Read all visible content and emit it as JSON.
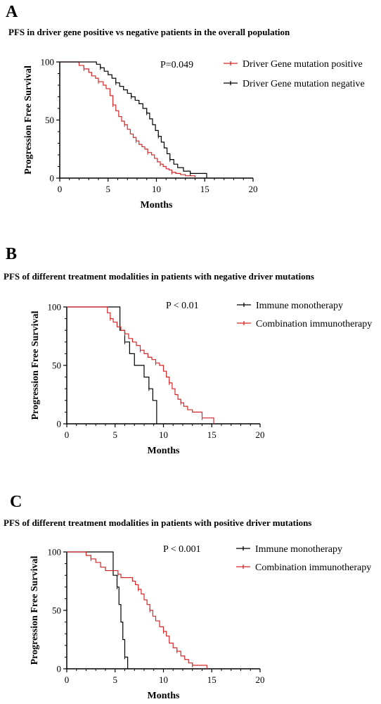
{
  "chart_data": [
    {
      "type": "line",
      "panel_label": "A",
      "title": "PFS in driver gene positive vs negative patients in the overall population",
      "xlabel": "Months",
      "ylabel": "Progression Free Survival",
      "xlim": [
        0,
        20
      ],
      "ylim": [
        0,
        100
      ],
      "xticks": [
        "0",
        "5",
        "10",
        "15",
        "20"
      ],
      "yticks": [
        "0",
        "50",
        "100"
      ],
      "annotation": "P=0.049",
      "legend_position": "top-right",
      "grid": false,
      "series": [
        {
          "name": "Driver Gene mutation positive",
          "color": "#d62728",
          "x": [
            0,
            2.0,
            2.5,
            3.0,
            3.3,
            3.7,
            4.0,
            4.5,
            4.8,
            5.2,
            5.5,
            5.8,
            6.1,
            6.4,
            6.7,
            7.0,
            7.3,
            7.6,
            7.9,
            8.2,
            8.5,
            8.8,
            9.1,
            9.5,
            9.8,
            10.1,
            10.4,
            10.7,
            11.0,
            11.3,
            11.6,
            12.0,
            12.5,
            13.0,
            14.0
          ],
          "y": [
            100,
            97,
            94,
            91,
            88,
            86,
            83,
            80,
            77,
            71,
            63,
            58,
            53,
            49,
            46,
            42,
            38,
            35,
            32,
            29,
            27,
            25,
            22,
            20,
            17,
            14,
            12,
            10,
            8,
            7,
            5,
            4,
            3,
            2,
            0
          ]
        },
        {
          "name": "Driver Gene mutation negative",
          "color": "#000000",
          "x": [
            0,
            3.8,
            4.2,
            4.6,
            5.0,
            5.4,
            5.8,
            6.2,
            6.6,
            7.0,
            7.4,
            7.8,
            8.2,
            8.6,
            9.0,
            9.3,
            9.6,
            9.9,
            10.2,
            10.5,
            10.8,
            11.1,
            11.4,
            11.8,
            12.2,
            12.8,
            13.5,
            15.2
          ],
          "y": [
            100,
            98,
            95,
            92,
            89,
            86,
            82,
            79,
            76,
            73,
            70,
            67,
            64,
            60,
            56,
            51,
            46,
            41,
            36,
            31,
            26,
            21,
            16,
            12,
            9,
            6,
            4,
            0
          ]
        }
      ]
    },
    {
      "type": "line",
      "panel_label": "B",
      "title": "PFS of different treatment modalities in patients with negative driver mutations",
      "xlabel": "Months",
      "ylabel": "Progression Free Survival",
      "xlim": [
        0,
        20
      ],
      "ylim": [
        0,
        100
      ],
      "xticks": [
        "0",
        "5",
        "10",
        "15",
        "20"
      ],
      "yticks": [
        "0",
        "50",
        "100"
      ],
      "annotation": "P < 0.01",
      "legend_position": "top-right",
      "grid": false,
      "series": [
        {
          "name": "Immune monotherapy",
          "color": "#000000",
          "x": [
            0,
            5.5,
            6.0,
            6.5,
            7.0,
            8.0,
            8.5,
            8.9,
            9.3
          ],
          "y": [
            100,
            80,
            70,
            60,
            50,
            40,
            30,
            20,
            0
          ]
        },
        {
          "name": "Combination immunotherapy",
          "color": "#d62728",
          "x": [
            0,
            4.2,
            4.5,
            4.8,
            5.2,
            5.6,
            6.0,
            6.4,
            6.8,
            7.2,
            7.6,
            8.0,
            8.4,
            8.8,
            9.2,
            9.6,
            10.0,
            10.3,
            10.6,
            10.9,
            11.2,
            11.5,
            11.8,
            12.1,
            12.5,
            13.0,
            14.0,
            15.2
          ],
          "y": [
            100,
            95,
            90,
            87,
            83,
            80,
            77,
            73,
            70,
            67,
            63,
            60,
            57,
            55,
            52,
            50,
            45,
            40,
            35,
            30,
            25,
            21,
            18,
            15,
            12,
            10,
            5,
            0
          ]
        }
      ]
    },
    {
      "type": "line",
      "panel_label": "C",
      "title": "PFS of different treatment modalities in patients with positive driver mutations",
      "xlabel": "Months",
      "ylabel": "Progression Free Survival",
      "xlim": [
        0,
        20
      ],
      "ylim": [
        0,
        100
      ],
      "xticks": [
        "0",
        "5",
        "10",
        "15",
        "20"
      ],
      "yticks": [
        "0",
        "50",
        "100"
      ],
      "annotation": "P < 0.001",
      "legend_position": "top-right",
      "grid": false,
      "series": [
        {
          "name": "Immune monotherapy",
          "color": "#000000",
          "x": [
            0,
            4.8,
            5.2,
            5.4,
            5.6,
            5.8,
            6.0,
            6.3
          ],
          "y": [
            100,
            80,
            70,
            55,
            40,
            25,
            10,
            0
          ]
        },
        {
          "name": "Combination immunotherapy",
          "color": "#d62728",
          "x": [
            0,
            2.0,
            2.5,
            3.0,
            3.5,
            4.0,
            5.3,
            5.6,
            6.8,
            7.1,
            7.4,
            7.7,
            8.0,
            8.3,
            8.6,
            8.9,
            9.2,
            9.6,
            10.0,
            10.3,
            10.6,
            11.0,
            11.4,
            11.8,
            12.2,
            12.6,
            13.0,
            14.5
          ],
          "y": [
            100,
            97,
            94,
            91,
            87,
            84,
            81,
            78,
            75,
            72,
            68,
            64,
            59,
            55,
            50,
            45,
            41,
            36,
            32,
            28,
            22,
            18,
            15,
            11,
            8,
            5,
            3,
            0
          ]
        }
      ]
    }
  ]
}
